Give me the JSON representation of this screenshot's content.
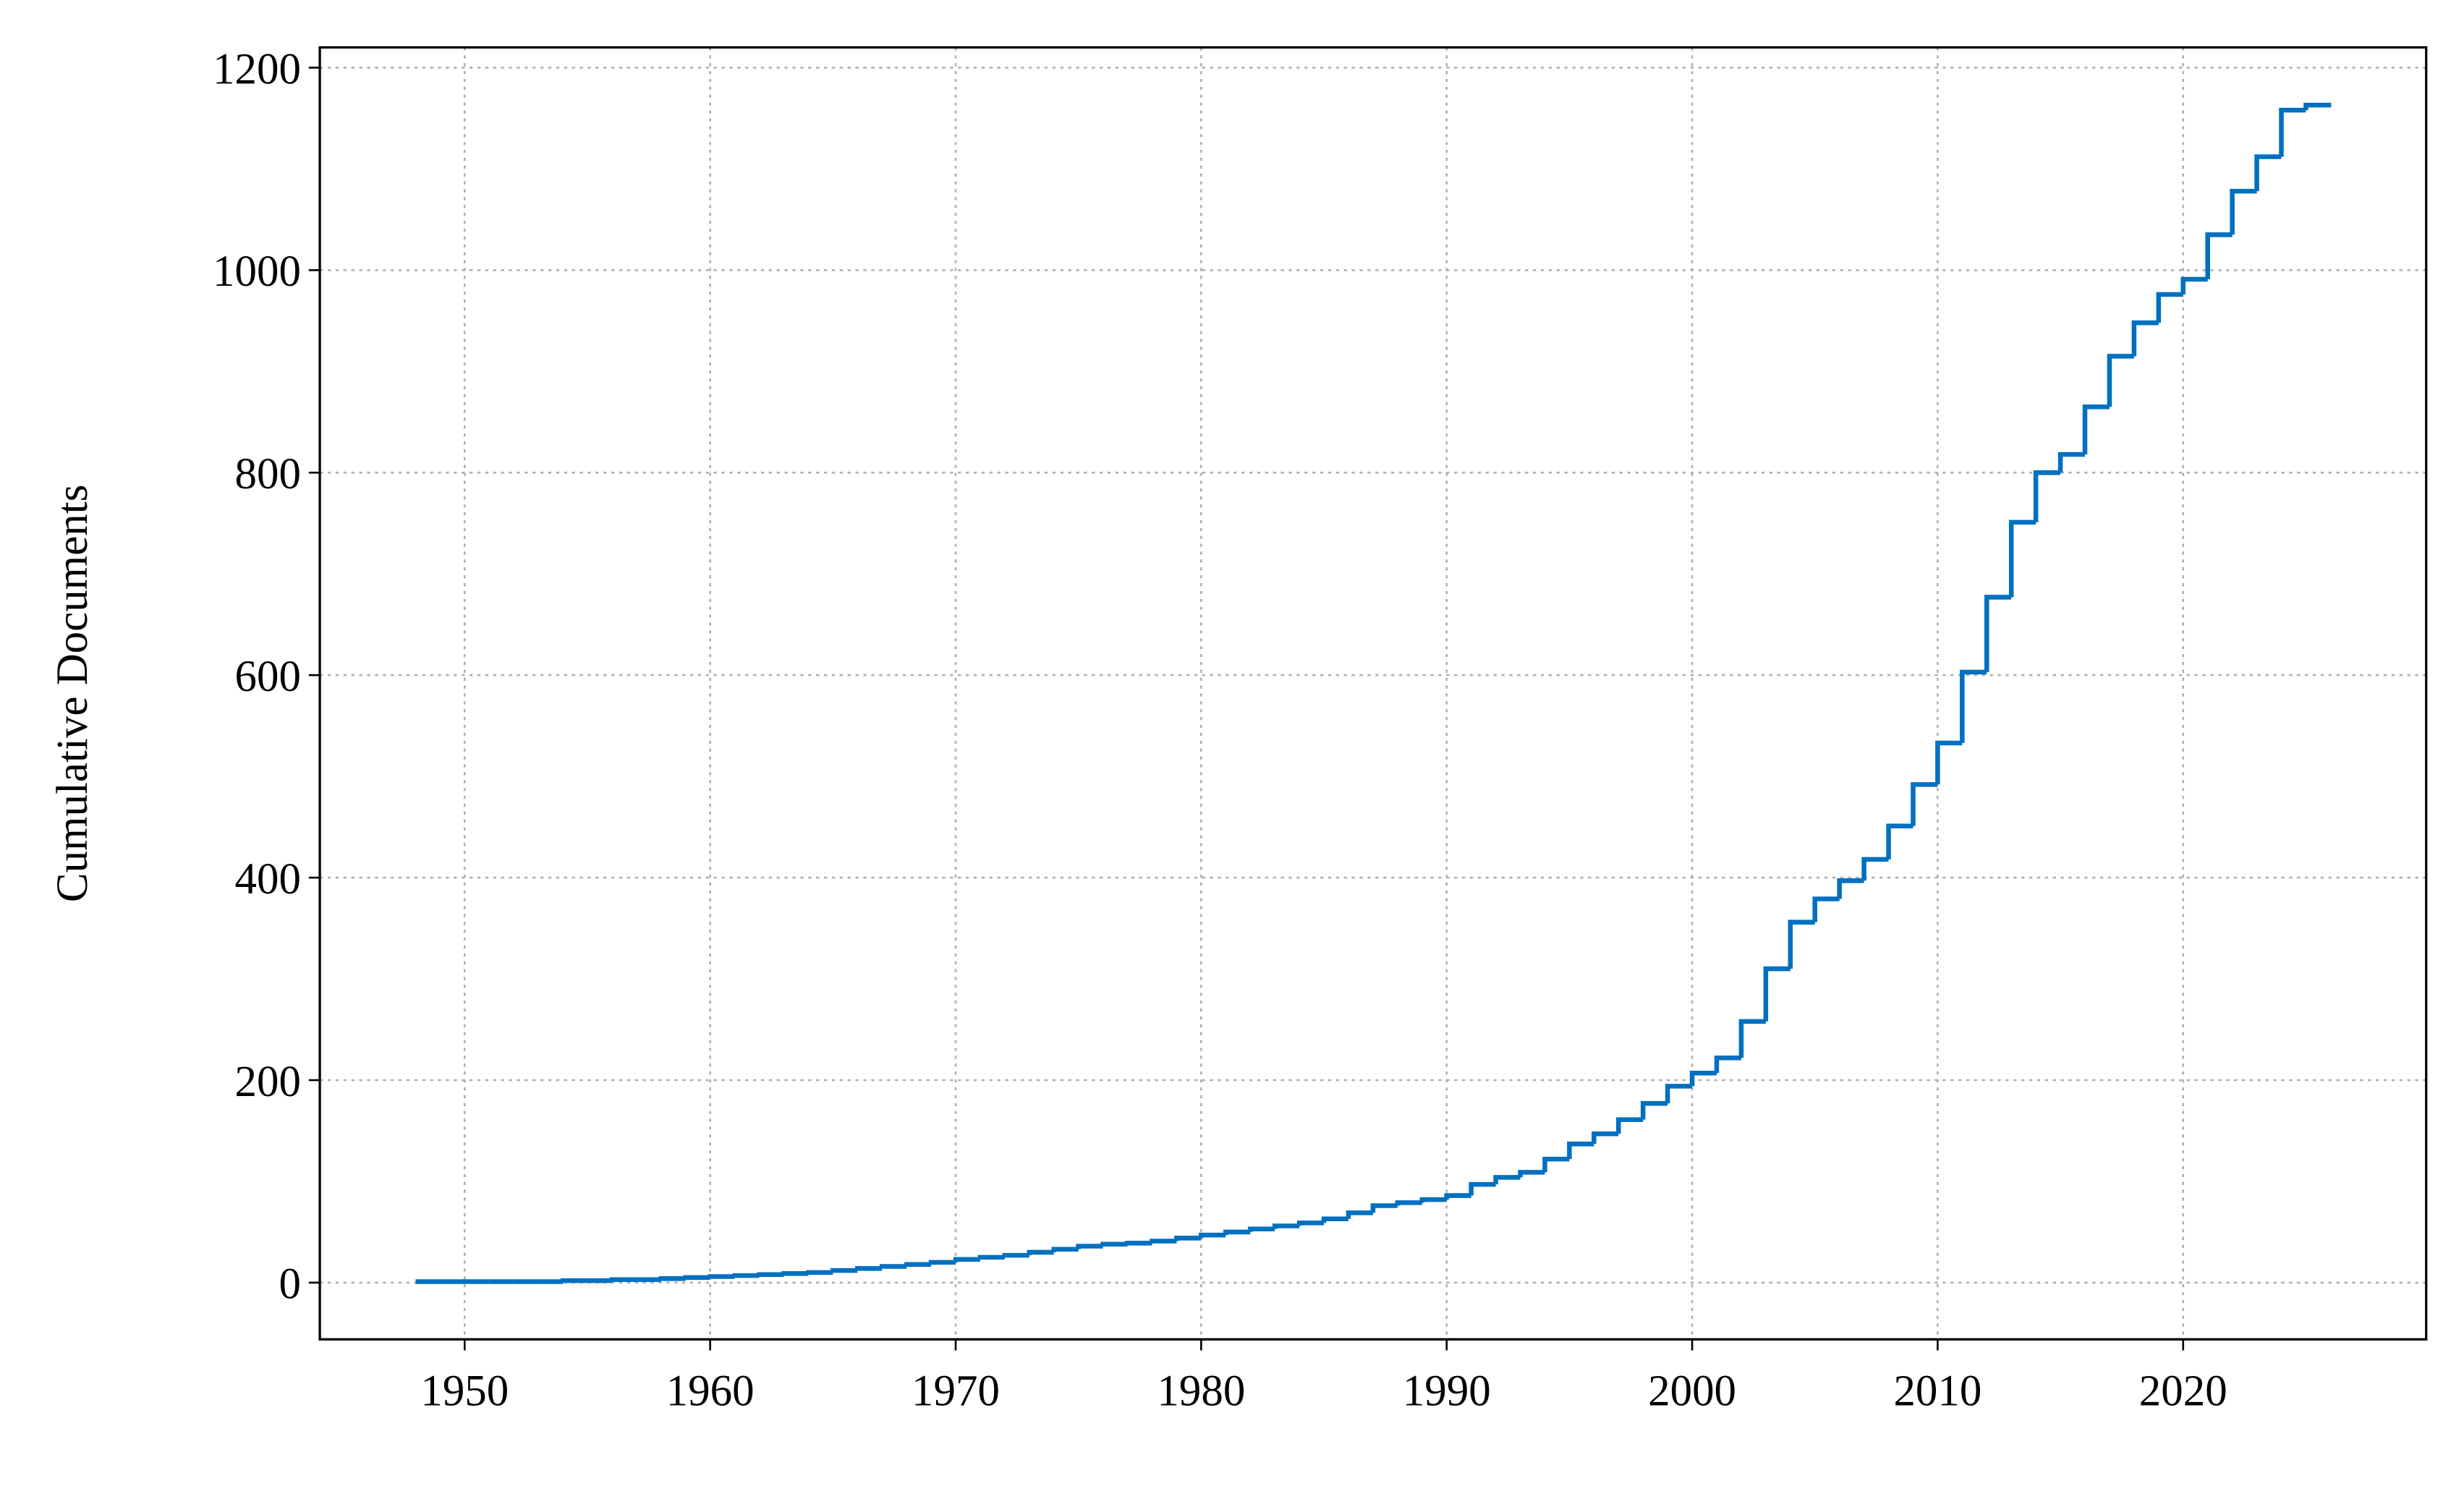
{
  "chart_data": {
    "type": "step",
    "ylabel": "Cumulative Documents",
    "x": [
      1948,
      1949,
      1950,
      1951,
      1952,
      1953,
      1954,
      1955,
      1956,
      1957,
      1958,
      1959,
      1960,
      1961,
      1962,
      1963,
      1964,
      1965,
      1966,
      1967,
      1968,
      1969,
      1970,
      1971,
      1972,
      1973,
      1974,
      1975,
      1976,
      1977,
      1978,
      1979,
      1980,
      1981,
      1982,
      1983,
      1984,
      1985,
      1986,
      1987,
      1988,
      1989,
      1990,
      1991,
      1992,
      1993,
      1994,
      1995,
      1996,
      1997,
      1998,
      1999,
      2000,
      2001,
      2002,
      2003,
      2004,
      2005,
      2006,
      2007,
      2008,
      2009,
      2010,
      2011,
      2012,
      2013,
      2014,
      2015,
      2016,
      2017,
      2018,
      2019,
      2020,
      2021,
      2022,
      2023,
      2024,
      2025,
      2026
    ],
    "values": [
      1,
      1,
      1,
      1,
      1,
      1,
      2,
      2,
      3,
      3,
      4,
      5,
      6,
      7,
      8,
      9,
      10,
      12,
      14,
      16,
      18,
      20,
      23,
      25,
      27,
      30,
      33,
      36,
      38,
      39,
      41,
      44,
      47,
      50,
      53,
      56,
      59,
      63,
      69,
      76,
      79,
      82,
      86,
      97,
      104,
      109,
      122,
      137,
      147,
      161,
      177,
      194,
      207,
      222,
      258,
      310,
      356,
      379,
      397,
      418,
      451,
      492,
      533,
      603,
      677,
      751,
      800,
      818,
      865,
      915,
      948,
      976,
      991,
      1035,
      1078,
      1112,
      1158,
      1163,
      1163
    ],
    "color": "#0070c0",
    "xlim": [
      1944.1,
      2029.9
    ],
    "ylim": [
      -56,
      1220
    ],
    "xticks": [
      1950,
      1960,
      1970,
      1980,
      1990,
      2000,
      2010,
      2020
    ],
    "yticks": [
      0,
      200,
      400,
      600,
      800,
      1000,
      1200
    ],
    "grid": true
  }
}
